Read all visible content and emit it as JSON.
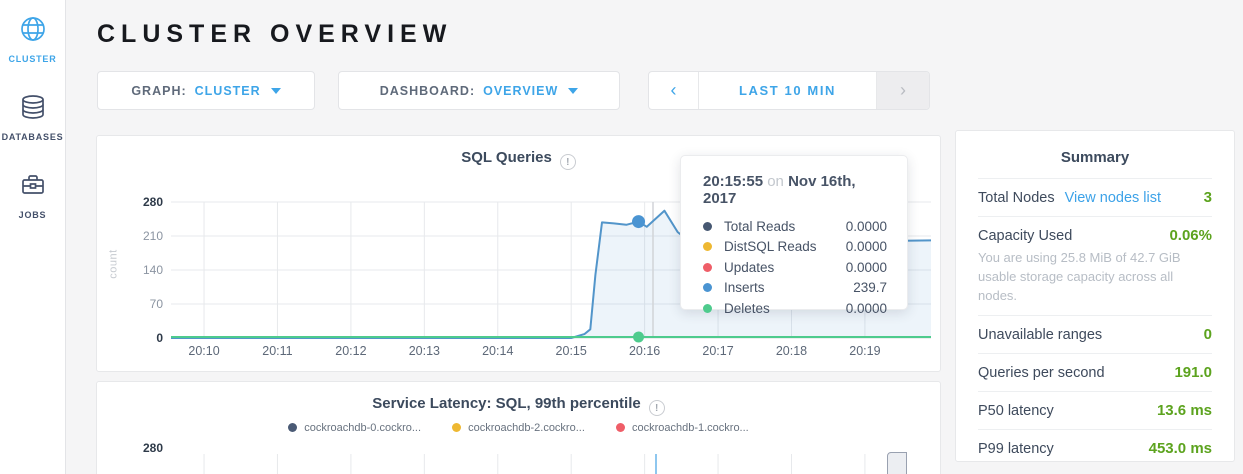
{
  "page": {
    "title": "CLUSTER OVERVIEW"
  },
  "icons": {
    "info": "!"
  },
  "sidebar": {
    "items": [
      {
        "label": "CLUSTER",
        "icon": "globe-icon",
        "active": true
      },
      {
        "label": "DATABASES",
        "icon": "database-icon",
        "active": false
      },
      {
        "label": "JOBS",
        "icon": "briefcase-icon",
        "active": false
      }
    ]
  },
  "controls": {
    "graph_label": "GRAPH:",
    "graph_value": "CLUSTER",
    "dashboard_label": "DASHBOARD:",
    "dashboard_value": "OVERVIEW",
    "time_prev": "‹",
    "time_range": "LAST 10 MIN",
    "time_next": "›"
  },
  "summary": {
    "title": "Summary",
    "total_nodes": {
      "label": "Total Nodes",
      "link": "View nodes list",
      "value": "3"
    },
    "capacity": {
      "label": "Capacity Used",
      "value": "0.06%",
      "description": "You are using 25.8 MiB of 42.7 GiB usable storage capacity across all nodes."
    },
    "unavailable": {
      "label": "Unavailable ranges",
      "value": "0"
    },
    "qps": {
      "label": "Queries per second",
      "value": "191.0"
    },
    "p50": {
      "label": "P50 latency",
      "value": "13.6 ms"
    },
    "p99": {
      "label": "P99 latency",
      "value": "453.0 ms"
    }
  },
  "colors": {
    "accent_blue": "#3ea5e8",
    "value_green": "#5ca31e",
    "navy_text": "#3c4a5d",
    "page_bg": "#f5f5f6"
  },
  "chart_data": [
    {
      "type": "area",
      "title": "SQL Queries",
      "ylabel": "count",
      "ylim": [
        0,
        280
      ],
      "yticks": [
        0,
        70,
        140,
        210,
        280
      ],
      "xlim": [
        9.55,
        19.9
      ],
      "xticks": [
        {
          "t": 10,
          "label": "20:10"
        },
        {
          "t": 11,
          "label": "20:11"
        },
        {
          "t": 12,
          "label": "20:12"
        },
        {
          "t": 13,
          "label": "20:13"
        },
        {
          "t": 14,
          "label": "20:14"
        },
        {
          "t": 15,
          "label": "20:15"
        },
        {
          "t": 16,
          "label": "20:16"
        },
        {
          "t": 17,
          "label": "20:17"
        },
        {
          "t": 18,
          "label": "20:18"
        },
        {
          "t": 19,
          "label": "20:19"
        }
      ],
      "series": [
        {
          "name": "Total Reads",
          "color": "#475872",
          "cursor_value": "0.0000"
        },
        {
          "name": "DistSQL Reads",
          "color": "#eeb832",
          "cursor_value": "0.0000"
        },
        {
          "name": "Updates",
          "color": "#ef5e68",
          "cursor_value": "0.0000"
        },
        {
          "name": "Inserts",
          "color": "#4a94d2",
          "cursor_value": "239.7",
          "points": [
            [
              9.55,
              0
            ],
            [
              15.0,
              0
            ],
            [
              15.18,
              8
            ],
            [
              15.26,
              18
            ],
            [
              15.33,
              130
            ],
            [
              15.42,
              238
            ],
            [
              15.58,
              236
            ],
            [
              15.75,
              233
            ],
            [
              15.917,
              239.7
            ],
            [
              16.03,
              229
            ],
            [
              16.27,
              262
            ],
            [
              16.45,
              218
            ],
            [
              16.6,
              200
            ],
            [
              16.8,
              225
            ],
            [
              17.0,
              210
            ],
            [
              17.25,
              228
            ],
            [
              17.5,
              215
            ],
            [
              17.75,
              230
            ],
            [
              18.0,
              218
            ],
            [
              18.25,
              232
            ],
            [
              18.5,
              220
            ],
            [
              18.75,
              228
            ],
            [
              19.0,
              215
            ],
            [
              19.2,
              205
            ],
            [
              19.4,
              200
            ],
            [
              19.9,
              201
            ]
          ]
        },
        {
          "name": "Deletes",
          "color": "#4ecb8d",
          "cursor_value": "0.0000",
          "points": [
            [
              9.55,
              0
            ],
            [
              19.9,
              0
            ]
          ]
        }
      ],
      "hover": {
        "time": "20:15:55",
        "on_word": "on",
        "date": "Nov 16th, 2017",
        "t": 15.917
      }
    },
    {
      "type": "line",
      "title": "Service Latency: SQL, 99th percentile",
      "ylim": [
        0,
        280
      ],
      "yticks_visible": [
        280
      ],
      "legend": [
        {
          "label": "cockroachdb-0.cockro...",
          "color": "#4a5a75"
        },
        {
          "label": "cockroachdb-2.cockro...",
          "color": "#eeb832"
        },
        {
          "label": "cockroachdb-1.cockro...",
          "color": "#ef5e68"
        }
      ]
    }
  ]
}
